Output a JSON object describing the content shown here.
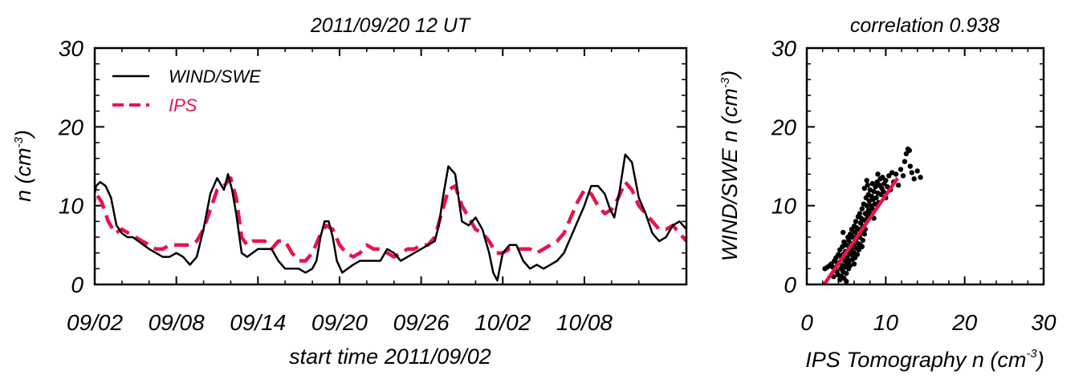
{
  "chart_data": [
    {
      "type": "line",
      "title": "2011/09/20 12 UT",
      "xlabel": "start time 2011/09/02",
      "ylabel": "n (cm",
      "ylabel_sup": "-3",
      "ylabel_close": ")",
      "x_unit": "days since start (start 2011/09/02)",
      "xlim": [
        0,
        43.5
      ],
      "ylim": [
        0,
        30
      ],
      "xticks": [
        {
          "value": 0,
          "label": "09/02"
        },
        {
          "value": 6,
          "label": "09/08"
        },
        {
          "value": 12,
          "label": "09/14"
        },
        {
          "value": 18,
          "label": "09/20"
        },
        {
          "value": 24,
          "label": "09/26"
        },
        {
          "value": 30,
          "label": "10/02"
        },
        {
          "value": 36,
          "label": "10/08"
        }
      ],
      "yticks": [
        {
          "value": 0,
          "label": "0"
        },
        {
          "value": 10,
          "label": "10"
        },
        {
          "value": 20,
          "label": "20"
        },
        {
          "value": 30,
          "label": "30"
        }
      ],
      "legend_position": "top-left",
      "series": [
        {
          "name": "WIND/SWE",
          "color": "#000000",
          "style": "solid",
          "x": [
            -0.7,
            -0.3,
            0.1,
            0.4,
            0.8,
            1.2,
            1.6,
            2.0,
            2.4,
            2.8,
            3.2,
            3.6,
            4.0,
            4.5,
            5.0,
            5.5,
            6.0,
            6.5,
            7.0,
            7.5,
            8.0,
            8.5,
            9.0,
            9.5,
            9.8,
            10.1,
            10.4,
            10.8,
            11.2,
            11.6,
            12.0,
            12.5,
            13.0,
            13.5,
            14.0,
            14.5,
            15.0,
            15.5,
            16.0,
            16.3,
            16.6,
            16.9,
            17.2,
            17.5,
            17.8,
            18.2,
            18.6,
            19.0,
            19.5,
            20.0,
            20.5,
            21.0,
            21.5,
            22.0,
            22.5,
            23.0,
            23.5,
            24.0,
            24.5,
            25.0,
            25.3,
            25.6,
            26.0,
            26.5,
            27.0,
            27.5,
            28.0,
            28.5,
            29.0,
            29.3,
            29.6,
            30.0,
            30.5,
            31.0,
            31.5,
            32.0,
            32.5,
            33.0,
            33.5,
            34.0,
            34.5,
            35.0,
            35.5,
            36.0,
            36.5,
            37.0,
            37.5,
            37.9,
            38.2,
            38.6,
            39.0,
            39.5,
            40.0,
            40.5,
            41.0,
            41.5,
            42.0,
            42.5,
            43.0,
            43.5
          ],
          "values": [
            6.0,
            8.5,
            12.5,
            13.0,
            12.5,
            11.0,
            7.5,
            6.5,
            6.0,
            6.0,
            5.5,
            5.0,
            4.5,
            4.0,
            3.5,
            3.5,
            4.0,
            3.5,
            2.5,
            3.5,
            7.0,
            11.5,
            13.5,
            12.0,
            14.0,
            12.0,
            9.0,
            4.0,
            3.5,
            4.0,
            4.5,
            4.5,
            4.5,
            3.0,
            2.0,
            2.0,
            2.0,
            1.5,
            2.0,
            3.0,
            6.0,
            8.0,
            8.0,
            6.0,
            3.0,
            1.5,
            2.0,
            2.5,
            3.0,
            3.0,
            3.0,
            3.0,
            4.5,
            4.0,
            3.0,
            3.5,
            4.0,
            4.5,
            5.0,
            5.5,
            7.5,
            11.0,
            15.0,
            14.0,
            8.0,
            7.5,
            8.5,
            7.0,
            4.0,
            1.5,
            0.5,
            4.0,
            5.0,
            5.0,
            3.0,
            2.0,
            2.5,
            2.0,
            2.5,
            3.0,
            4.0,
            6.0,
            8.0,
            10.0,
            12.5,
            12.5,
            11.5,
            9.5,
            8.5,
            12.0,
            16.5,
            15.5,
            11.0,
            9.0,
            6.5,
            5.5,
            6.0,
            7.5,
            8.0,
            7.0
          ]
        },
        {
          "name": "IPS",
          "color": "#e8134d",
          "style": "dashed",
          "x": [
            -0.7,
            -0.3,
            0.1,
            0.5,
            1.0,
            1.5,
            2.0,
            2.5,
            3.0,
            3.5,
            4.0,
            4.5,
            5.0,
            5.5,
            6.0,
            6.5,
            7.0,
            7.5,
            8.0,
            8.5,
            9.0,
            9.5,
            10.0,
            10.4,
            10.8,
            11.2,
            11.6,
            12.0,
            12.5,
            13.0,
            13.5,
            14.0,
            14.5,
            15.0,
            15.5,
            16.0,
            16.5,
            17.0,
            17.5,
            18.0,
            18.5,
            19.0,
            19.5,
            20.0,
            20.5,
            21.0,
            21.5,
            22.0,
            22.5,
            23.0,
            23.5,
            24.0,
            24.5,
            25.0,
            25.5,
            26.0,
            26.5,
            27.0,
            27.5,
            28.0,
            28.5,
            29.0,
            29.5,
            30.0,
            30.5,
            31.0,
            31.5,
            32.0,
            32.5,
            33.0,
            33.5,
            34.0,
            34.5,
            35.0,
            35.5,
            36.0,
            36.5,
            37.0,
            37.5,
            38.0,
            38.5,
            39.0,
            39.5,
            40.0,
            40.5,
            41.0,
            41.5,
            42.0,
            42.5,
            43.0,
            43.5
          ],
          "values": [
            6.5,
            9.0,
            11.5,
            10.5,
            8.0,
            6.5,
            7.0,
            6.5,
            6.0,
            5.5,
            5.0,
            4.5,
            4.5,
            5.0,
            5.0,
            5.0,
            5.0,
            5.5,
            7.0,
            9.5,
            12.0,
            12.5,
            13.5,
            11.0,
            6.0,
            5.0,
            5.5,
            5.5,
            5.5,
            4.5,
            5.5,
            5.5,
            4.0,
            3.0,
            3.0,
            4.0,
            6.0,
            7.5,
            7.0,
            5.0,
            4.0,
            3.5,
            4.0,
            5.0,
            4.5,
            4.5,
            4.0,
            3.5,
            4.0,
            4.5,
            4.5,
            5.0,
            5.0,
            6.0,
            9.0,
            12.0,
            12.5,
            10.0,
            8.5,
            7.0,
            6.5,
            5.5,
            4.0,
            4.0,
            4.5,
            4.5,
            4.5,
            4.5,
            4.0,
            4.5,
            5.0,
            5.5,
            6.5,
            8.5,
            10.5,
            12.0,
            11.5,
            10.0,
            9.0,
            9.5,
            11.0,
            13.0,
            12.0,
            10.0,
            9.0,
            8.0,
            7.0,
            7.0,
            7.5,
            6.5,
            5.5
          ]
        }
      ]
    },
    {
      "type": "scatter",
      "title": "correlation 0.938",
      "xlabel": "IPS Tomography n (cm",
      "xlabel_sup": "-3",
      "xlabel_close": ")",
      "ylabel": "WIND/SWE n (cm",
      "ylabel_sup": "-3",
      "ylabel_close": ")",
      "xlim": [
        0,
        30
      ],
      "ylim": [
        0,
        30
      ],
      "xticks": [
        {
          "value": 0,
          "label": "0"
        },
        {
          "value": 10,
          "label": "10"
        },
        {
          "value": 20,
          "label": "20"
        },
        {
          "value": 30,
          "label": "30"
        }
      ],
      "yticks": [
        {
          "value": 0,
          "label": "0"
        },
        {
          "value": 10,
          "label": "10"
        },
        {
          "value": 20,
          "label": "20"
        },
        {
          "value": 30,
          "label": "30"
        }
      ],
      "fit_line": {
        "color": "#e8134d",
        "x": [
          1.5,
          11.5
        ],
        "y": [
          -1.0,
          13.5
        ]
      },
      "point_color": "#000000",
      "points": [
        [
          2.3,
          2.0
        ],
        [
          2.6,
          2.2
        ],
        [
          2.9,
          2.4
        ],
        [
          3.1,
          2.6
        ],
        [
          3.3,
          2.2
        ],
        [
          3.5,
          3.0
        ],
        [
          3.6,
          2.0
        ],
        [
          3.7,
          3.4
        ],
        [
          3.8,
          1.6
        ],
        [
          3.9,
          2.6
        ],
        [
          4.0,
          3.8
        ],
        [
          4.0,
          1.2
        ],
        [
          4.1,
          2.8
        ],
        [
          4.2,
          4.4
        ],
        [
          4.2,
          0.6
        ],
        [
          4.3,
          2.0
        ],
        [
          4.4,
          3.4
        ],
        [
          4.4,
          1.0
        ],
        [
          4.5,
          4.8
        ],
        [
          4.5,
          2.4
        ],
        [
          4.6,
          3.8
        ],
        [
          4.6,
          1.6
        ],
        [
          4.7,
          0.8
        ],
        [
          4.7,
          5.4
        ],
        [
          4.8,
          3.0
        ],
        [
          4.8,
          2.2
        ],
        [
          4.9,
          4.2
        ],
        [
          5.0,
          1.4
        ],
        [
          5.0,
          5.0
        ],
        [
          5.1,
          3.4
        ],
        [
          5.1,
          2.6
        ],
        [
          5.2,
          6.0
        ],
        [
          5.2,
          4.0
        ],
        [
          5.3,
          2.0
        ],
        [
          5.3,
          5.6
        ],
        [
          5.4,
          3.0
        ],
        [
          5.4,
          4.6
        ],
        [
          5.5,
          6.4
        ],
        [
          5.5,
          2.4
        ],
        [
          5.6,
          3.8
        ],
        [
          5.6,
          5.2
        ],
        [
          5.7,
          7.0
        ],
        [
          5.7,
          4.4
        ],
        [
          5.8,
          3.2
        ],
        [
          5.8,
          6.0
        ],
        [
          5.9,
          5.0
        ],
        [
          6.0,
          7.4
        ],
        [
          6.0,
          4.0
        ],
        [
          6.1,
          3.4
        ],
        [
          6.1,
          6.6
        ],
        [
          6.2,
          5.6
        ],
        [
          6.2,
          8.0
        ],
        [
          6.3,
          4.6
        ],
        [
          6.3,
          7.2
        ],
        [
          6.4,
          3.8
        ],
        [
          6.4,
          6.2
        ],
        [
          6.5,
          8.6
        ],
        [
          6.5,
          5.2
        ],
        [
          6.6,
          7.0
        ],
        [
          6.6,
          4.4
        ],
        [
          6.7,
          9.0
        ],
        [
          6.7,
          6.0
        ],
        [
          6.8,
          7.8
        ],
        [
          6.8,
          5.0
        ],
        [
          6.9,
          8.4
        ],
        [
          7.0,
          6.6
        ],
        [
          7.0,
          9.6
        ],
        [
          7.1,
          7.4
        ],
        [
          7.1,
          5.6
        ],
        [
          7.2,
          10.2
        ],
        [
          7.2,
          8.2
        ],
        [
          7.3,
          6.4
        ],
        [
          7.3,
          12.2
        ],
        [
          7.4,
          9.0
        ],
        [
          7.4,
          7.0
        ],
        [
          7.5,
          11.0
        ],
        [
          7.5,
          8.0
        ],
        [
          7.6,
          13.2
        ],
        [
          7.6,
          10.0
        ],
        [
          7.7,
          8.6
        ],
        [
          7.7,
          12.6
        ],
        [
          7.8,
          9.4
        ],
        [
          7.8,
          11.4
        ],
        [
          7.9,
          10.6
        ],
        [
          8.0,
          9.0
        ],
        [
          8.0,
          12.0
        ],
        [
          8.1,
          10.0
        ],
        [
          8.2,
          11.2
        ],
        [
          8.3,
          9.6
        ],
        [
          8.3,
          12.8
        ],
        [
          8.4,
          10.8
        ],
        [
          8.5,
          11.8
        ],
        [
          8.6,
          10.2
        ],
        [
          8.7,
          12.4
        ],
        [
          8.8,
          11.0
        ],
        [
          8.9,
          13.0
        ],
        [
          9.0,
          11.6
        ],
        [
          9.1,
          10.4
        ],
        [
          9.2,
          12.6
        ],
        [
          9.3,
          13.4
        ],
        [
          9.4,
          11.4
        ],
        [
          9.5,
          12.2
        ],
        [
          9.6,
          13.6
        ],
        [
          9.7,
          11.8
        ],
        [
          9.8,
          12.8
        ],
        [
          10.0,
          13.2
        ],
        [
          10.2,
          12.4
        ],
        [
          10.4,
          13.8
        ],
        [
          10.6,
          12.0
        ],
        [
          10.8,
          14.2
        ],
        [
          11.0,
          13.0
        ],
        [
          11.3,
          14.0
        ],
        [
          11.6,
          12.6
        ],
        [
          11.9,
          14.6
        ],
        [
          12.2,
          13.8
        ],
        [
          12.4,
          15.6
        ],
        [
          12.6,
          16.6
        ],
        [
          12.8,
          17.2
        ],
        [
          13.0,
          17.0
        ],
        [
          13.1,
          15.0
        ],
        [
          13.3,
          14.2
        ],
        [
          13.6,
          13.4
        ],
        [
          14.0,
          14.4
        ],
        [
          14.4,
          13.6
        ],
        [
          3.4,
          1.0
        ],
        [
          5.0,
          0.4
        ],
        [
          6.0,
          2.6
        ],
        [
          4.6,
          6.6
        ],
        [
          7.0,
          4.8
        ],
        [
          8.5,
          8.4
        ],
        [
          9.0,
          14.0
        ],
        [
          10.0,
          11.0
        ]
      ]
    }
  ]
}
